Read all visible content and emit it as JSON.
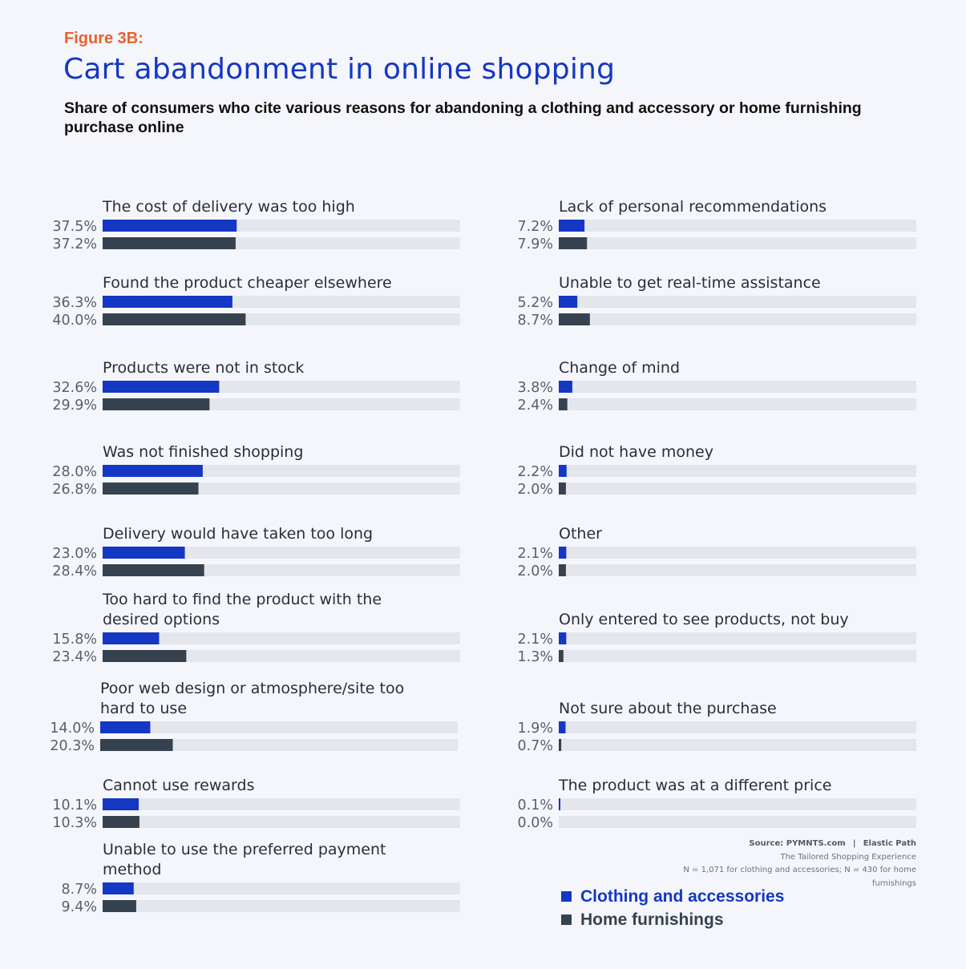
{
  "figure_label": "Figure 3B:",
  "title": "Cart abandonment in online shopping",
  "subtitle": "Share of consumers who cite various reasons for abandoning a clothing and accessory or home furnishing purchase online",
  "source": {
    "line1_a": "Source: PYMNTS.com",
    "line1_sep": "|",
    "line1_b": "Elastic Path",
    "line2": "The Tailored Shopping Experience",
    "line3": "N = 1,071 for clothing and accessories; N = 430 for home",
    "line4": "furnishings"
  },
  "legend": {
    "clothing": "Clothing and accessories",
    "home": "Home furnishings"
  },
  "colors": {
    "clothing": "#1437c4",
    "home": "#36424f",
    "track": "#e4e6eb",
    "figure_label": "#e8612c",
    "title": "#1437c4"
  },
  "chart_data": {
    "type": "bar",
    "orientation": "horizontal",
    "title": "Cart abandonment in online shopping",
    "xlim": [
      0,
      100
    ],
    "grid": false,
    "series": [
      {
        "name": "Clothing and accessories"
      },
      {
        "name": "Home furnishings"
      }
    ],
    "categories": [
      {
        "label": [
          "The cost of delivery was too high"
        ],
        "values": [
          37.5,
          37.2
        ],
        "display": [
          "37.5%",
          "37.2%"
        ]
      },
      {
        "label": [
          "Found the product cheaper elsewhere"
        ],
        "values": [
          36.3,
          40.0
        ],
        "display": [
          "36.3%",
          "40.0%"
        ]
      },
      {
        "label": [
          "Products were not in stock"
        ],
        "values": [
          32.6,
          29.9
        ],
        "display": [
          "32.6%",
          "29.9%"
        ]
      },
      {
        "label": [
          "Was not finished shopping"
        ],
        "values": [
          28.0,
          26.8
        ],
        "display": [
          "28.0%",
          "26.8%"
        ]
      },
      {
        "label": [
          "Delivery would have taken too long"
        ],
        "values": [
          23.0,
          28.4
        ],
        "display": [
          "23.0%",
          "28.4%"
        ]
      },
      {
        "label": [
          "Too hard to find the product with the",
          "desired options"
        ],
        "values": [
          15.8,
          23.4
        ],
        "display": [
          "15.8%",
          "23.4%"
        ]
      },
      {
        "label": [
          "Poor web design or atmosphere/site too",
          "hard to use"
        ],
        "values": [
          14.0,
          20.3
        ],
        "display": [
          "14.0%",
          "20.3%"
        ]
      },
      {
        "label": [
          "Cannot use rewards"
        ],
        "values": [
          10.1,
          10.3
        ],
        "display": [
          "10.1%",
          "10.3%"
        ]
      },
      {
        "label": [
          "Unable to use the preferred payment",
          "method"
        ],
        "values": [
          8.7,
          9.4
        ],
        "display": [
          "8.7%",
          "9.4%"
        ]
      },
      {
        "label": [
          "Lack of personal recommendations"
        ],
        "values": [
          7.2,
          7.9
        ],
        "display": [
          "7.2%",
          "7.9%"
        ]
      },
      {
        "label": [
          "Unable to get real-time assistance"
        ],
        "values": [
          5.2,
          8.7
        ],
        "display": [
          "5.2%",
          "8.7%"
        ]
      },
      {
        "label": [
          "Change of mind"
        ],
        "values": [
          3.8,
          2.4
        ],
        "display": [
          "3.8%",
          "2.4%"
        ]
      },
      {
        "label": [
          "Did not have money"
        ],
        "values": [
          2.2,
          2.0
        ],
        "display": [
          "2.2%",
          "2.0%"
        ]
      },
      {
        "label": [
          "Other"
        ],
        "values": [
          2.1,
          2.0
        ],
        "display": [
          "2.1%",
          "2.0%"
        ]
      },
      {
        "label": [
          "Only entered to see products, not buy"
        ],
        "values": [
          2.1,
          1.3
        ],
        "display": [
          "2.1%",
          "1.3%"
        ]
      },
      {
        "label": [
          "Not sure about the purchase"
        ],
        "values": [
          1.9,
          0.7
        ],
        "display": [
          "1.9%",
          "0.7%"
        ]
      },
      {
        "label": [
          "The product was at a different price"
        ],
        "values": [
          0.1,
          0.0
        ],
        "display": [
          "0.1%",
          "0.0%"
        ]
      }
    ]
  }
}
